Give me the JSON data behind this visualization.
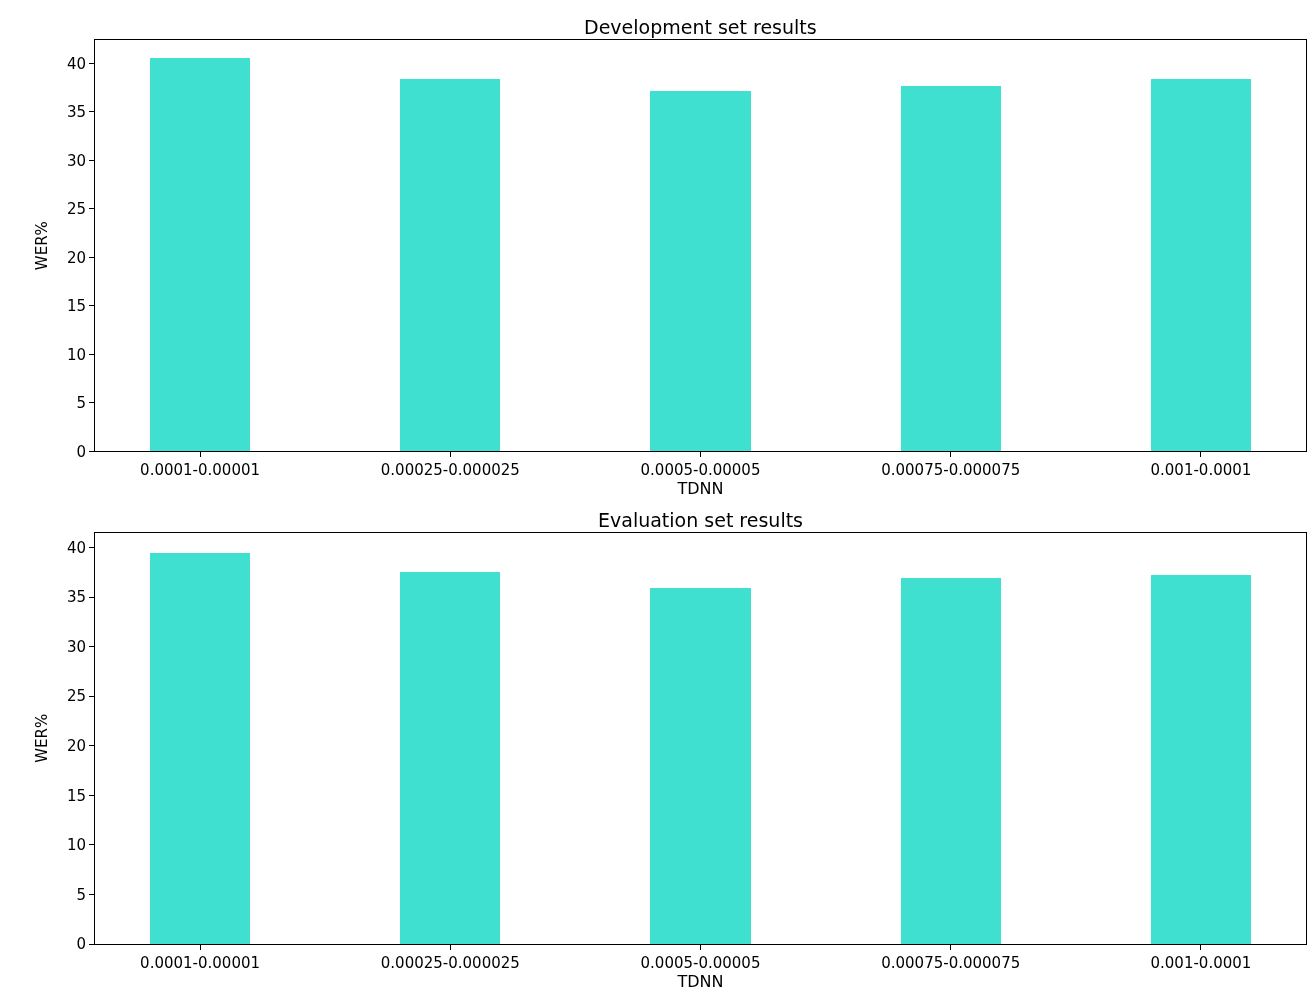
{
  "chart_data": [
    {
      "type": "bar",
      "title": "Development set results",
      "xlabel": "TDNN",
      "ylabel": "WER%",
      "categories": [
        "0.0001-0.00001",
        "0.00025-0.000025",
        "0.0005-0.00005",
        "0.00075-0.000075",
        "0.001-0.0001"
      ],
      "values": [
        40.5,
        38.4,
        37.1,
        37.7,
        38.4
      ],
      "color": "#40e0d0",
      "ylim": [
        0,
        42.4
      ],
      "yticks": [
        0,
        5,
        10,
        15,
        20,
        25,
        30,
        35,
        40
      ]
    },
    {
      "type": "bar",
      "title": "Evaluation set results",
      "xlabel": "TDNN",
      "ylabel": "WER%",
      "categories": [
        "0.0001-0.00001",
        "0.00025-0.000025",
        "0.0005-0.00005",
        "0.00075-0.000075",
        "0.001-0.0001"
      ],
      "values": [
        39.5,
        37.6,
        36.0,
        37.0,
        37.3
      ],
      "color": "#40e0d0",
      "ylim": [
        0,
        41.5
      ],
      "yticks": [
        0,
        5,
        10,
        15,
        20,
        25,
        30,
        35,
        40
      ]
    }
  ]
}
